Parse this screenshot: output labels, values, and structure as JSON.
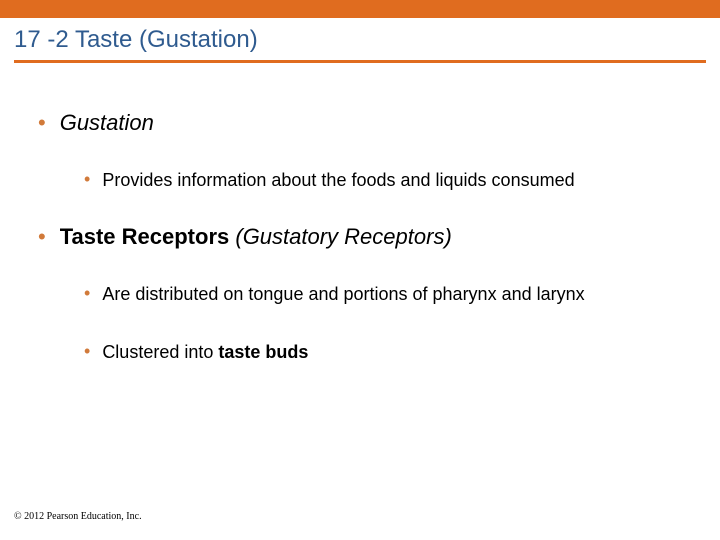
{
  "colors": {
    "accent": "#e06c1f",
    "title": "#2f5b8f",
    "bullet_l1": "#d17a3a",
    "bg": "#ffffff",
    "text": "#000000"
  },
  "title": "17 -2 Taste (Gustation)",
  "bullets": {
    "b1": "Gustation",
    "b1a": "Provides information about the foods and liquids consumed",
    "b2_bold": "Taste Receptors",
    "b2_rest": " (Gustatory Receptors)",
    "b2a": "Are distributed on tongue and portions of pharynx and larynx",
    "b2b_pre": "Clustered into ",
    "b2b_bold": "taste buds"
  },
  "copyright": "© 2012 Pearson Education, Inc.",
  "typography": {
    "title_fontsize": 24,
    "l1_fontsize": 22,
    "l2_fontsize": 18,
    "copyright_fontsize": 10
  }
}
